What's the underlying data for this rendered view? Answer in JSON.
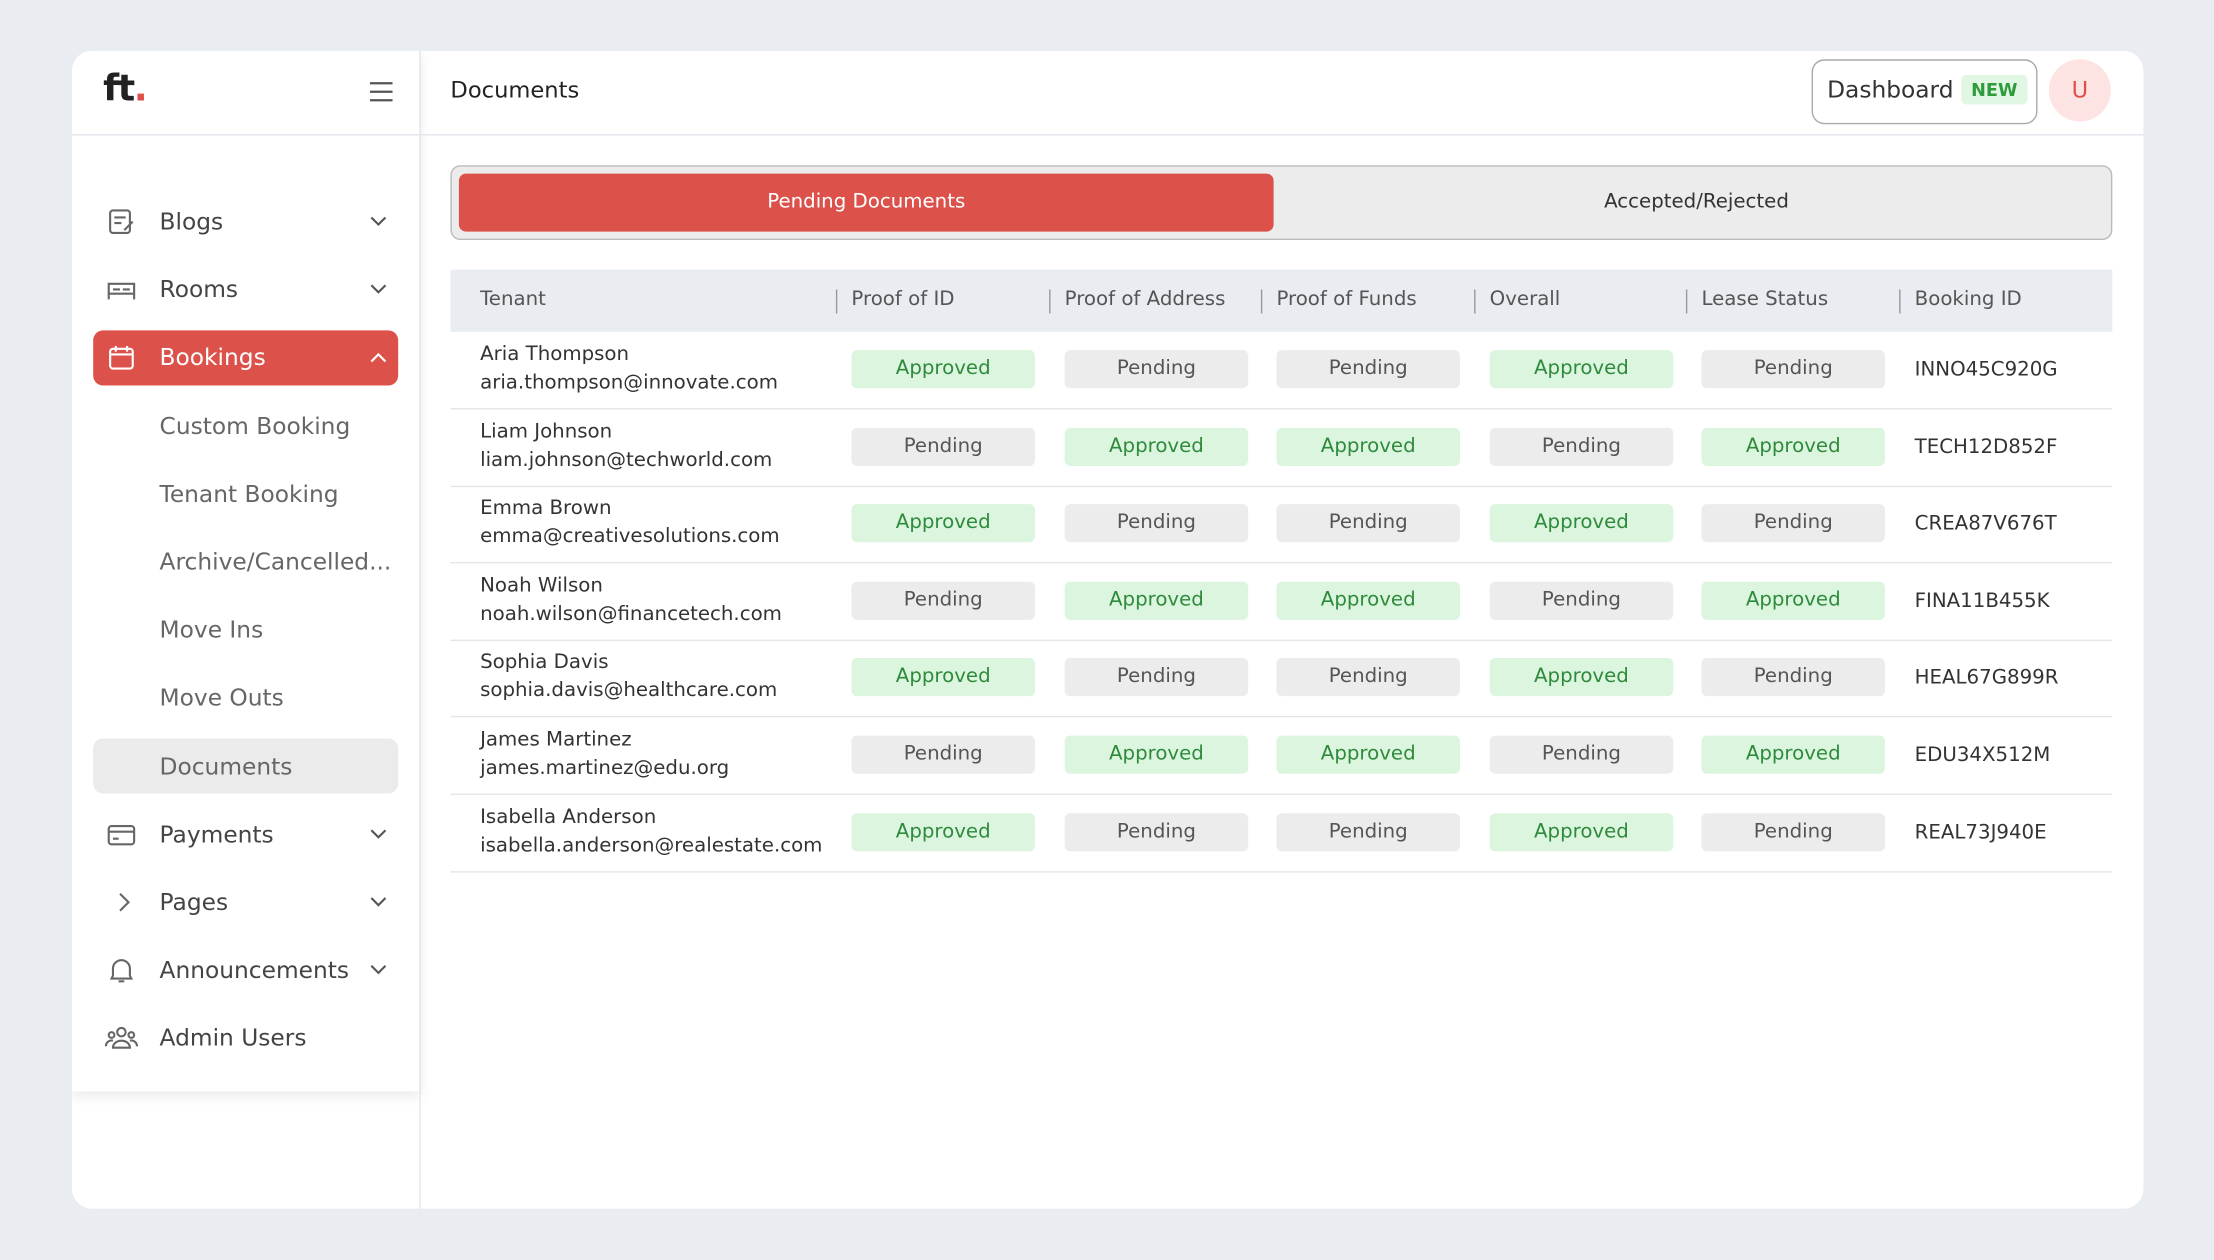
{
  "logo": {
    "text": "ft",
    "dot": "."
  },
  "sidebar": {
    "items": [
      "Blogs",
      "Rooms",
      "Bookings",
      "Custom Booking",
      "Tenant Booking",
      "Archive/Cancelled...",
      "Move Ins",
      "Move Outs",
      "Documents",
      "Payments",
      "Pages",
      "Announcements",
      "Admin Users"
    ]
  },
  "header": {
    "title": "Documents",
    "dashboard_button": "Dashboard",
    "badge": "NEW",
    "avatar": "U"
  },
  "tabs": [
    "Pending Documents",
    "Accepted/Rejected"
  ],
  "table": {
    "columns": [
      "Tenant",
      "Proof of ID",
      "Proof of Address",
      "Proof of Funds",
      "Overall",
      "Lease Status",
      "Booking ID"
    ],
    "pill_styles": {
      "Approved": {
        "bg": "#dcf5df",
        "fg": "#2e8b3c"
      },
      "Pending": {
        "bg": "#ececec",
        "fg": "#555555"
      }
    },
    "rows": [
      {
        "name": "Aria Thompson",
        "email": "aria.thompson@innovate.com",
        "statuses": [
          "Approved",
          "Pending",
          "Pending",
          "Approved",
          "Pending"
        ],
        "booking_id": "INNO45C920G"
      },
      {
        "name": "Liam Johnson",
        "email": "liam.johnson@techworld.com",
        "statuses": [
          "Pending",
          "Approved",
          "Approved",
          "Pending",
          "Approved"
        ],
        "booking_id": "TECH12D852F"
      },
      {
        "name": "Emma Brown",
        "email": "emma@creativesolutions.com",
        "statuses": [
          "Approved",
          "Pending",
          "Pending",
          "Approved",
          "Pending"
        ],
        "booking_id": "CREA87V676T"
      },
      {
        "name": "Noah Wilson",
        "email": "noah.wilson@financetech.com",
        "statuses": [
          "Pending",
          "Approved",
          "Approved",
          "Pending",
          "Approved"
        ],
        "booking_id": "FINA11B455K"
      },
      {
        "name": "Sophia Davis",
        "email": "sophia.davis@healthcare.com",
        "statuses": [
          "Approved",
          "Pending",
          "Pending",
          "Approved",
          "Pending"
        ],
        "booking_id": "HEAL67G899R"
      },
      {
        "name": "James Martinez",
        "email": "james.martinez@edu.org",
        "statuses": [
          "Pending",
          "Approved",
          "Approved",
          "Pending",
          "Approved"
        ],
        "booking_id": "EDU34X512M"
      },
      {
        "name": "Isabella Anderson",
        "email": "isabella.anderson@realestate.com",
        "statuses": [
          "Approved",
          "Pending",
          "Pending",
          "Approved",
          "Pending"
        ],
        "booking_id": "REAL73J940E"
      }
    ]
  }
}
